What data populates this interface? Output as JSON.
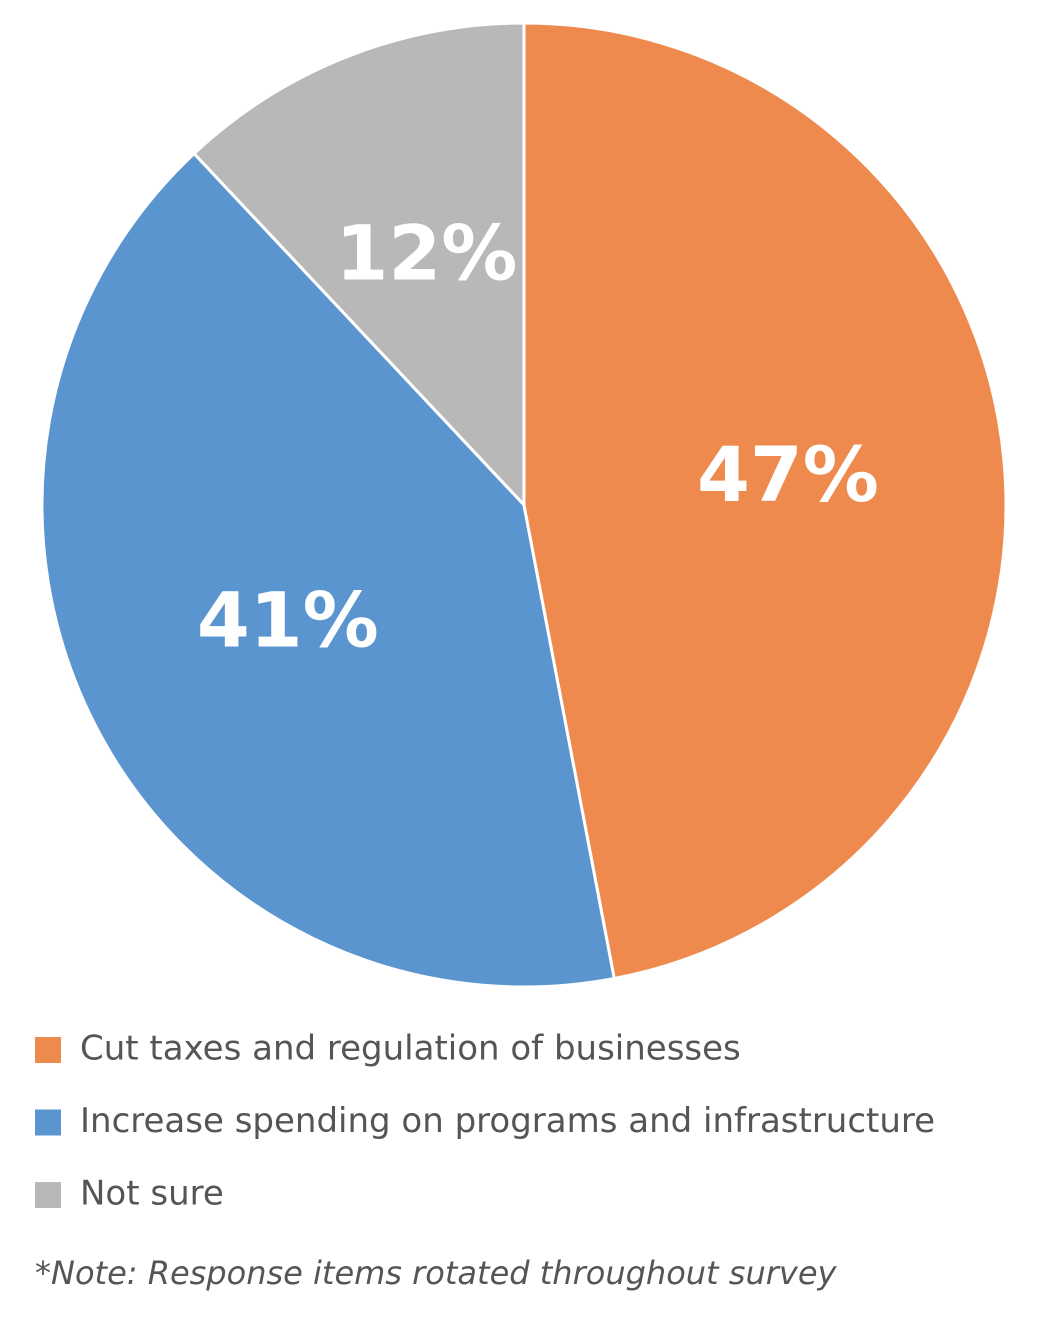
{
  "chart_data": {
    "type": "pie",
    "categories": [
      "Cut taxes and regulation of businesses",
      "Increase spending on programs and infrastructure",
      "Not sure"
    ],
    "values": [
      47,
      41,
      12
    ],
    "value_labels": [
      "47%",
      "41%",
      "12%"
    ],
    "colors": [
      "#ef8a4e",
      "#5b95cf",
      "#b8b8b8"
    ],
    "note": "*Note: Response items rotated throughout survey"
  }
}
